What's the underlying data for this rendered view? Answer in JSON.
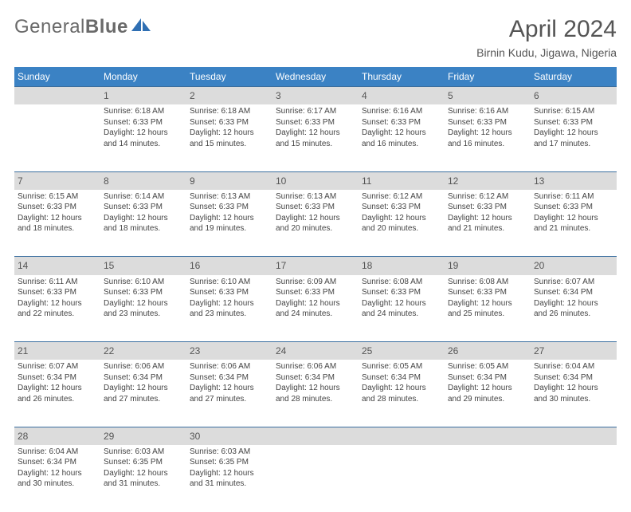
{
  "logo": {
    "word1": "General",
    "word2": "Blue"
  },
  "title": "April 2024",
  "location": "Birnin Kudu, Jigawa, Nigeria",
  "colors": {
    "header_bg": "#3b82c4",
    "header_text": "#ffffff",
    "daynum_bg": "#dcdcdc",
    "border": "#3b6fa0",
    "text": "#444444",
    "title_color": "#555555",
    "logo_blue": "#2f6fb3"
  },
  "day_headers": [
    "Sunday",
    "Monday",
    "Tuesday",
    "Wednesday",
    "Thursday",
    "Friday",
    "Saturday"
  ],
  "weeks": [
    {
      "nums": [
        "",
        "1",
        "2",
        "3",
        "4",
        "5",
        "6"
      ],
      "cells": [
        null,
        {
          "sunrise": "6:18 AM",
          "sunset": "6:33 PM",
          "daylight": "12 hours and 14 minutes."
        },
        {
          "sunrise": "6:18 AM",
          "sunset": "6:33 PM",
          "daylight": "12 hours and 15 minutes."
        },
        {
          "sunrise": "6:17 AM",
          "sunset": "6:33 PM",
          "daylight": "12 hours and 15 minutes."
        },
        {
          "sunrise": "6:16 AM",
          "sunset": "6:33 PM",
          "daylight": "12 hours and 16 minutes."
        },
        {
          "sunrise": "6:16 AM",
          "sunset": "6:33 PM",
          "daylight": "12 hours and 16 minutes."
        },
        {
          "sunrise": "6:15 AM",
          "sunset": "6:33 PM",
          "daylight": "12 hours and 17 minutes."
        }
      ]
    },
    {
      "nums": [
        "7",
        "8",
        "9",
        "10",
        "11",
        "12",
        "13"
      ],
      "cells": [
        {
          "sunrise": "6:15 AM",
          "sunset": "6:33 PM",
          "daylight": "12 hours and 18 minutes."
        },
        {
          "sunrise": "6:14 AM",
          "sunset": "6:33 PM",
          "daylight": "12 hours and 18 minutes."
        },
        {
          "sunrise": "6:13 AM",
          "sunset": "6:33 PM",
          "daylight": "12 hours and 19 minutes."
        },
        {
          "sunrise": "6:13 AM",
          "sunset": "6:33 PM",
          "daylight": "12 hours and 20 minutes."
        },
        {
          "sunrise": "6:12 AM",
          "sunset": "6:33 PM",
          "daylight": "12 hours and 20 minutes."
        },
        {
          "sunrise": "6:12 AM",
          "sunset": "6:33 PM",
          "daylight": "12 hours and 21 minutes."
        },
        {
          "sunrise": "6:11 AM",
          "sunset": "6:33 PM",
          "daylight": "12 hours and 21 minutes."
        }
      ]
    },
    {
      "nums": [
        "14",
        "15",
        "16",
        "17",
        "18",
        "19",
        "20"
      ],
      "cells": [
        {
          "sunrise": "6:11 AM",
          "sunset": "6:33 PM",
          "daylight": "12 hours and 22 minutes."
        },
        {
          "sunrise": "6:10 AM",
          "sunset": "6:33 PM",
          "daylight": "12 hours and 23 minutes."
        },
        {
          "sunrise": "6:10 AM",
          "sunset": "6:33 PM",
          "daylight": "12 hours and 23 minutes."
        },
        {
          "sunrise": "6:09 AM",
          "sunset": "6:33 PM",
          "daylight": "12 hours and 24 minutes."
        },
        {
          "sunrise": "6:08 AM",
          "sunset": "6:33 PM",
          "daylight": "12 hours and 24 minutes."
        },
        {
          "sunrise": "6:08 AM",
          "sunset": "6:33 PM",
          "daylight": "12 hours and 25 minutes."
        },
        {
          "sunrise": "6:07 AM",
          "sunset": "6:34 PM",
          "daylight": "12 hours and 26 minutes."
        }
      ]
    },
    {
      "nums": [
        "21",
        "22",
        "23",
        "24",
        "25",
        "26",
        "27"
      ],
      "cells": [
        {
          "sunrise": "6:07 AM",
          "sunset": "6:34 PM",
          "daylight": "12 hours and 26 minutes."
        },
        {
          "sunrise": "6:06 AM",
          "sunset": "6:34 PM",
          "daylight": "12 hours and 27 minutes."
        },
        {
          "sunrise": "6:06 AM",
          "sunset": "6:34 PM",
          "daylight": "12 hours and 27 minutes."
        },
        {
          "sunrise": "6:06 AM",
          "sunset": "6:34 PM",
          "daylight": "12 hours and 28 minutes."
        },
        {
          "sunrise": "6:05 AM",
          "sunset": "6:34 PM",
          "daylight": "12 hours and 28 minutes."
        },
        {
          "sunrise": "6:05 AM",
          "sunset": "6:34 PM",
          "daylight": "12 hours and 29 minutes."
        },
        {
          "sunrise": "6:04 AM",
          "sunset": "6:34 PM",
          "daylight": "12 hours and 30 minutes."
        }
      ]
    },
    {
      "nums": [
        "28",
        "29",
        "30",
        "",
        "",
        "",
        ""
      ],
      "cells": [
        {
          "sunrise": "6:04 AM",
          "sunset": "6:34 PM",
          "daylight": "12 hours and 30 minutes."
        },
        {
          "sunrise": "6:03 AM",
          "sunset": "6:35 PM",
          "daylight": "12 hours and 31 minutes."
        },
        {
          "sunrise": "6:03 AM",
          "sunset": "6:35 PM",
          "daylight": "12 hours and 31 minutes."
        },
        null,
        null,
        null,
        null
      ]
    }
  ],
  "labels": {
    "sunrise_prefix": "Sunrise: ",
    "sunset_prefix": "Sunset: ",
    "daylight_prefix": "Daylight: "
  }
}
